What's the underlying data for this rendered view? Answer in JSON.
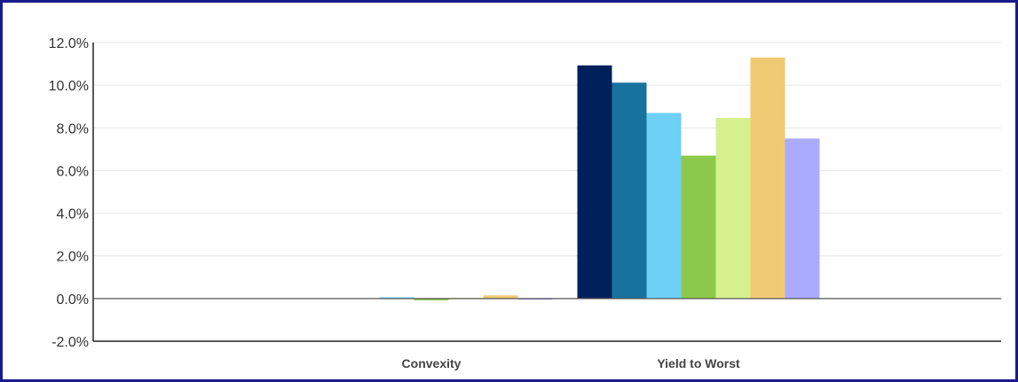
{
  "chart_data": {
    "type": "bar",
    "categories": [
      "Convexity",
      "Yield to Worst"
    ],
    "ylim": [
      -0.02,
      0.12
    ],
    "yticks": [
      "12.0%",
      "10.0%",
      "8.0%",
      "6.0%",
      "4.0%",
      "2.0%",
      "0.0%",
      "-2.0%"
    ],
    "ytick_values": [
      0.12,
      0.1,
      0.08,
      0.06,
      0.04,
      0.02,
      0.0,
      -0.02
    ],
    "grid": true,
    "legend": "none",
    "series": [
      {
        "color": "#00205b",
        "values": [
          0.0,
          0.1093
        ]
      },
      {
        "color": "#17729e",
        "values": [
          0.0,
          0.1012
        ]
      },
      {
        "color": "#6dd0f7",
        "values": [
          0.0006,
          0.087
        ]
      },
      {
        "color": "#8bc94a",
        "values": [
          -0.0008,
          0.067
        ]
      },
      {
        "color": "#d6f08e",
        "values": [
          0.0003,
          0.0847
        ]
      },
      {
        "color": "#f0ca73",
        "values": [
          0.0015,
          0.113
        ]
      },
      {
        "color": "#aaaaff",
        "values": [
          -0.0005,
          0.075
        ]
      }
    ]
  }
}
